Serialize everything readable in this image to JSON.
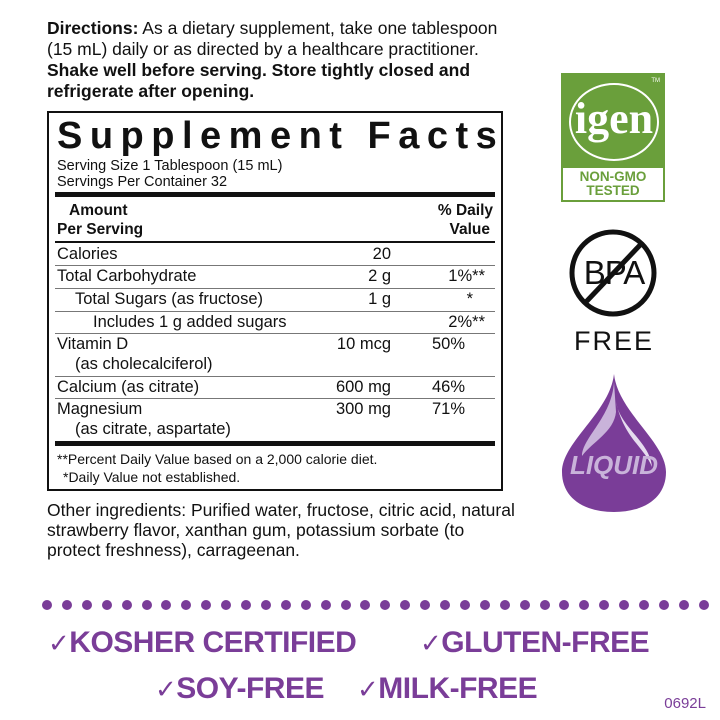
{
  "directions": {
    "label": "Directions:",
    "text": " As a dietary supplement, take one tablespoon (15 mL) daily or as directed by a healthcare practitioner. ",
    "bold_text": "Shake well before serving. Store tightly closed and refrigerate after opening."
  },
  "facts": {
    "title": "Supplement Facts",
    "serving_size": "Serving Size 1 Tablespoon (15 mL)",
    "servings_per_container": "Servings Per Container 32",
    "header_amount": [
      "Amount",
      "Per Serving"
    ],
    "header_dv": [
      "% Daily",
      "Value"
    ],
    "rows": [
      {
        "name": "Calories",
        "amount": "20",
        "dv": ""
      },
      {
        "name": "Total Carbohydrate",
        "amount": "2 g",
        "dv": "1%**"
      },
      {
        "name": "Total Sugars (as fructose)",
        "amount": "1 g",
        "dv": "*"
      },
      {
        "name": "Includes 1 g added sugars",
        "amount": "",
        "dv": "2%**"
      },
      {
        "name": "Vitamin D",
        "sub": "(as cholecalciferol)",
        "amount": "10 mcg",
        "dv": "50%"
      },
      {
        "name": "Calcium (as citrate)",
        "amount": "600 mg",
        "dv": "46%"
      },
      {
        "name": "Magnesium",
        "sub": "(as citrate, aspartate)",
        "amount": "300 mg",
        "dv": "71%"
      }
    ],
    "footnote1": "**Percent Daily Value based on a 2,000 calorie diet.",
    "footnote2": "*Daily Value not established."
  },
  "other_ingredients": "Other ingredients: Purified water, fructose, citric acid, natural strawberry flavor, xanthan gum, potassium sorbate (to protect freshness), carrageenan.",
  "badges": {
    "igen": {
      "logo": "igen",
      "tm": "TM",
      "line1": "NON-GMO",
      "line2": "TESTED",
      "color": "#6a9f3b"
    },
    "bpa": {
      "logo": "BPA",
      "label": "FREE"
    },
    "liquid": {
      "logo": "LIQUID",
      "color": "#7a3d98"
    }
  },
  "claims": {
    "check": "✓",
    "items": [
      "KOSHER CERTIFIED",
      "GLUTEN-FREE",
      "SOY-FREE",
      "MILK-FREE"
    ],
    "color": "#7a3d98"
  },
  "code": "0692L"
}
